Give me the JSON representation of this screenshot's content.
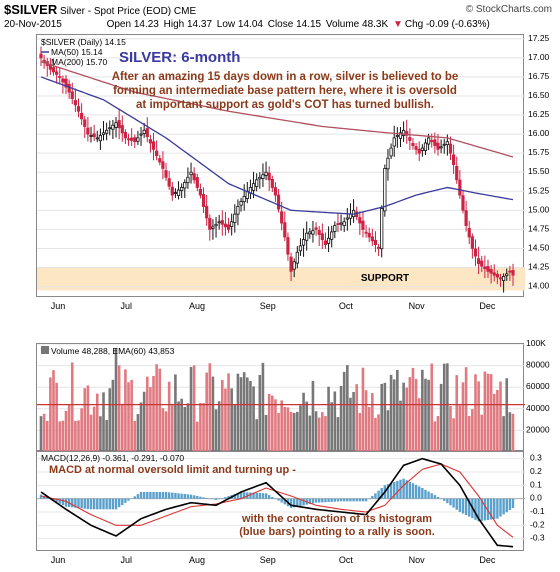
{
  "header": {
    "symbol": "$SILVER",
    "name": "Silver - Spot Price (EOD) CME",
    "source": "© StockCharts.com",
    "date": "20-Nov-2015",
    "open": "Open 14.23",
    "high": "High 14.37",
    "low": "Low 14.04",
    "close": "Close 14.15",
    "volume": "Volume 48.3K",
    "change": "Chg -0.09 (-0.63%)",
    "change_arrow": "▼"
  },
  "colors": {
    "up": "#111111",
    "down": "#cc2244",
    "ma50": "#3a3a9a",
    "ma200": "#b05060",
    "support": "#fde6c4",
    "vol_up": "#777777",
    "vol_down": "#e07a80",
    "hist": "#5aa0cc",
    "macd": "#000000",
    "signal": "#dd3333",
    "annot": "#8b3a1a",
    "title_blue": "#3a3aa0"
  },
  "chart_data": [
    {
      "type": "candlestick",
      "title": "SILVER: 6-month",
      "legend": [
        "$SILVER (Daily) 14.15",
        "MA(50) 15.14",
        "MA(200) 15.70"
      ],
      "annotation": [
        "After an amazing 15 days down in a row, silver is believed to be",
        "forming an intermediate base pattern here, where it is oversold",
        "at important support as gold's COT has turned  bullish."
      ],
      "support_label": "SUPPORT",
      "support_zone": [
        13.95,
        14.25
      ],
      "ylim": [
        13.85,
        17.3
      ],
      "y_ticks": [
        14.0,
        14.25,
        14.5,
        14.75,
        15.0,
        15.25,
        15.5,
        15.75,
        16.0,
        16.25,
        16.5,
        16.75,
        17.0,
        17.25
      ],
      "x_ticks": [
        "Jun",
        "Jul",
        "Aug",
        "Sep",
        "Oct",
        "Nov",
        "Dec"
      ],
      "close_anchors": [
        [
          0,
          17.0
        ],
        [
          3,
          16.85
        ],
        [
          6,
          16.75
        ],
        [
          9,
          16.55
        ],
        [
          12,
          16.3
        ],
        [
          15,
          16.0
        ],
        [
          18,
          15.95
        ],
        [
          21,
          16.05
        ],
        [
          24,
          16.15
        ],
        [
          27,
          15.95
        ],
        [
          30,
          15.9
        ],
        [
          33,
          16.05
        ],
        [
          36,
          15.8
        ],
        [
          39,
          15.55
        ],
        [
          42,
          15.2
        ],
        [
          45,
          15.3
        ],
        [
          48,
          15.5
        ],
        [
          51,
          15.2
        ],
        [
          54,
          14.75
        ],
        [
          57,
          14.85
        ],
        [
          60,
          14.75
        ],
        [
          63,
          15.05
        ],
        [
          66,
          15.25
        ],
        [
          69,
          15.4
        ],
        [
          72,
          15.5
        ],
        [
          75,
          15.2
        ],
        [
          78,
          14.65
        ],
        [
          80,
          14.2
        ],
        [
          82,
          14.45
        ],
        [
          85,
          14.7
        ],
        [
          88,
          14.75
        ],
        [
          91,
          14.55
        ],
        [
          94,
          14.8
        ],
        [
          97,
          14.85
        ],
        [
          100,
          15.0
        ],
        [
          103,
          14.75
        ],
        [
          106,
          14.6
        ],
        [
          108,
          14.5
        ],
        [
          110,
          15.55
        ],
        [
          113,
          15.95
        ],
        [
          116,
          16.05
        ],
        [
          119,
          15.85
        ],
        [
          121,
          15.75
        ],
        [
          124,
          15.95
        ],
        [
          127,
          15.8
        ],
        [
          130,
          15.9
        ],
        [
          132,
          15.6
        ],
        [
          134,
          15.2
        ],
        [
          136,
          14.8
        ],
        [
          138,
          14.5
        ],
        [
          140,
          14.3
        ],
        [
          143,
          14.2
        ],
        [
          147,
          14.1
        ],
        [
          150,
          14.2
        ],
        [
          151,
          14.15
        ]
      ],
      "ma50_anchors": [
        [
          0,
          16.75
        ],
        [
          20,
          16.45
        ],
        [
          40,
          15.95
        ],
        [
          60,
          15.35
        ],
        [
          80,
          15.0
        ],
        [
          100,
          14.95
        ],
        [
          110,
          15.05
        ],
        [
          120,
          15.2
        ],
        [
          130,
          15.3
        ],
        [
          140,
          15.22
        ],
        [
          151,
          15.14
        ]
      ],
      "ma200_anchors": [
        [
          0,
          16.95
        ],
        [
          30,
          16.55
        ],
        [
          60,
          16.3
        ],
        [
          90,
          16.1
        ],
        [
          110,
          16.02
        ],
        [
          130,
          15.95
        ],
        [
          151,
          15.7
        ]
      ]
    },
    {
      "type": "bar",
      "title": "Volume 48,288, EMA(60) 43,853",
      "ylim": [
        0,
        100000
      ],
      "y_tick_labels": [
        "20000",
        "40000",
        "60000",
        "80000",
        "100K"
      ],
      "y_ticks": [
        20000,
        40000,
        60000,
        80000,
        100000
      ],
      "ema_level": 43853
    },
    {
      "type": "line",
      "title": "MACD(12,26,9) -0.361, -0.291, -0.070",
      "annotation_top": "MACD at normal oversold limit and turning up -",
      "annotation_bottom": [
        "with the contraction of its histogram",
        "(blue bars) pointing to a rally is soon."
      ],
      "ylim": [
        -0.4,
        0.35
      ],
      "y_ticks": [
        0.3,
        0.2,
        0.1,
        0.0,
        -0.1,
        -0.2,
        -0.3
      ],
      "macd_anchors": [
        [
          0,
          0.05
        ],
        [
          8,
          -0.08
        ],
        [
          16,
          -0.2
        ],
        [
          24,
          -0.28
        ],
        [
          32,
          -0.15
        ],
        [
          40,
          -0.08
        ],
        [
          48,
          -0.03
        ],
        [
          56,
          -0.05
        ],
        [
          64,
          0.05
        ],
        [
          72,
          0.12
        ],
        [
          80,
          -0.05
        ],
        [
          88,
          -0.08
        ],
        [
          96,
          -0.1
        ],
        [
          104,
          -0.12
        ],
        [
          110,
          0.05
        ],
        [
          116,
          0.25
        ],
        [
          122,
          0.3
        ],
        [
          128,
          0.26
        ],
        [
          134,
          0.1
        ],
        [
          140,
          -0.15
        ],
        [
          146,
          -0.35
        ],
        [
          151,
          -0.36
        ]
      ],
      "signal_anchors": [
        [
          0,
          0.02
        ],
        [
          8,
          -0.02
        ],
        [
          16,
          -0.12
        ],
        [
          24,
          -0.2
        ],
        [
          32,
          -0.2
        ],
        [
          40,
          -0.13
        ],
        [
          48,
          -0.06
        ],
        [
          56,
          -0.04
        ],
        [
          64,
          0.0
        ],
        [
          72,
          0.08
        ],
        [
          80,
          0.02
        ],
        [
          88,
          -0.05
        ],
        [
          96,
          -0.08
        ],
        [
          104,
          -0.1
        ],
        [
          110,
          -0.05
        ],
        [
          116,
          0.1
        ],
        [
          122,
          0.22
        ],
        [
          128,
          0.26
        ],
        [
          134,
          0.2
        ],
        [
          140,
          0.02
        ],
        [
          146,
          -0.2
        ],
        [
          151,
          -0.29
        ]
      ]
    }
  ]
}
